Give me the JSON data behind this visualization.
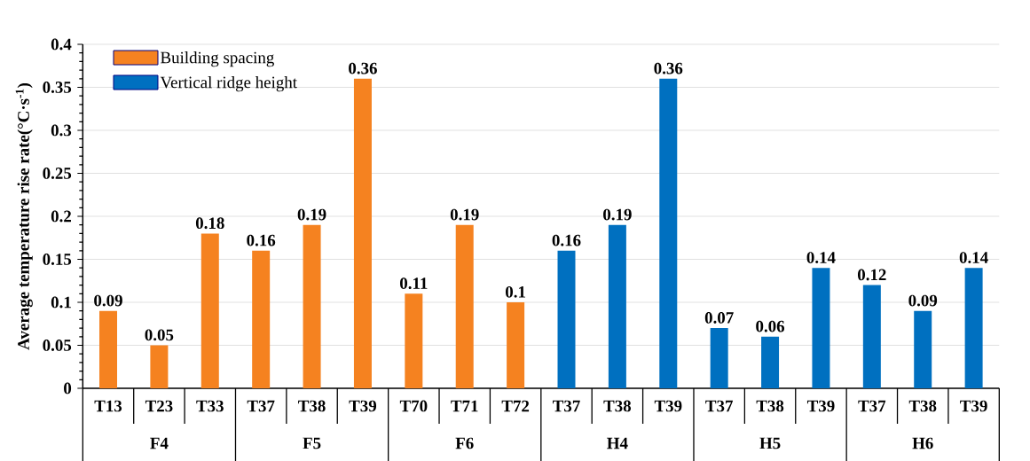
{
  "chart_data": {
    "type": "bar",
    "ylabel": "Average temperature rise rate(°C·s$^{-1}$)",
    "categories": [
      "T13",
      "T23",
      "T33",
      "T37",
      "T38",
      "T39",
      "T70",
      "T71",
      "T72",
      "T37",
      "T38",
      "T39",
      "T37",
      "T38",
      "T39",
      "T37",
      "T38",
      "T39"
    ],
    "annotations": [
      "F4",
      "F5",
      "F6",
      "H4",
      "H5",
      "H6"
    ],
    "series": [
      {
        "name": "Building spacing",
        "color": "#f58220",
        "values": [
          0.09,
          0.05,
          0.18,
          0.16,
          0.19,
          0.36,
          0.11,
          0.19,
          0.1,
          null,
          null,
          null,
          null,
          null,
          null,
          null,
          null,
          null
        ]
      },
      {
        "name": "Vertical ridge height",
        "color": "#0070c0",
        "values": [
          null,
          null,
          null,
          null,
          null,
          null,
          null,
          null,
          null,
          0.16,
          0.19,
          0.36,
          0.07,
          0.06,
          0.14,
          0.12,
          0.09,
          0.14
        ]
      }
    ],
    "ylim": [
      0,
      0.4
    ],
    "yticks": [
      0,
      0.05,
      0.1,
      0.15,
      0.2,
      0.25,
      0.3,
      0.35,
      0.4
    ],
    "grid": "y",
    "legend": "top left",
    "data_labels": true
  }
}
